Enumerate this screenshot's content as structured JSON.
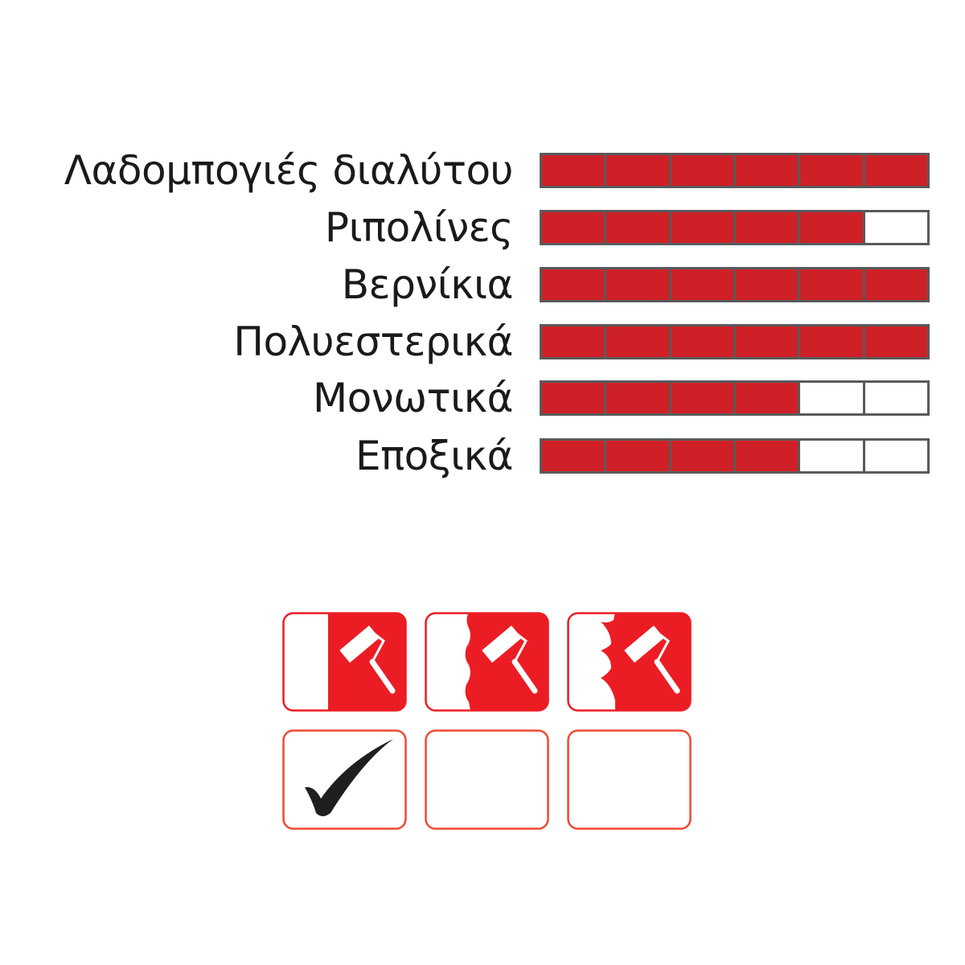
{
  "ratings": [
    {
      "label": "Λαδομπογιές διαλύτου",
      "level": 6,
      "max": 6
    },
    {
      "label": "Ριπολίνες",
      "level": 5,
      "max": 6
    },
    {
      "label": "Βερνίκια",
      "level": 6,
      "max": 6
    },
    {
      "label": "Πολυεστερικά",
      "level": 6,
      "max": 6
    },
    {
      "label": "Μονωτικά",
      "level": 4,
      "max": 6
    },
    {
      "label": "Εποξικά",
      "level": 4,
      "max": 6
    }
  ],
  "colors": {
    "fill": "#cf2027",
    "border": "#5a5a5a",
    "icon_red": "#ec1c24"
  },
  "surface_icons": [
    {
      "icon": "paint-roller-smooth-surface-icon",
      "checked": true
    },
    {
      "icon": "paint-roller-semi-rough-surface-icon",
      "checked": false
    },
    {
      "icon": "paint-roller-rough-surface-icon",
      "checked": false
    }
  ]
}
